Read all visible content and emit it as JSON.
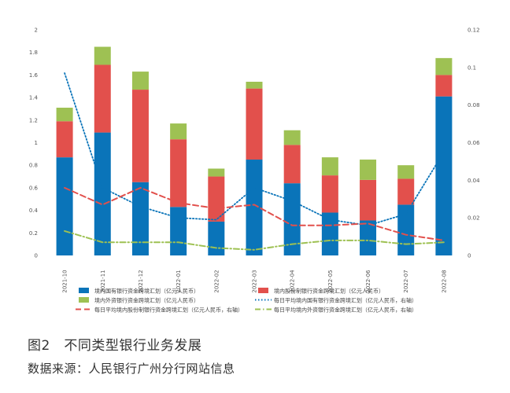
{
  "figure": {
    "caption": "图2　不同类型银行业务发展",
    "source": "数据来源：人民银行广州分行网站信息"
  },
  "chart_data": {
    "type": "bar",
    "stacked": true,
    "categories": [
      "2021-10",
      "2021-11",
      "2021-12",
      "2022-01",
      "2022-02",
      "2022-03",
      "2022-04",
      "2022-05",
      "2022-06",
      "2022-07",
      "2022-08"
    ],
    "ylim": [
      0,
      2
    ],
    "yticks": [
      "0",
      "0.2",
      "0.4",
      "0.6",
      "0.8",
      "1",
      "1.2",
      "1.4",
      "1.6",
      "1.8",
      "2"
    ],
    "y2lim": [
      0,
      0.12
    ],
    "y2ticks": [
      "0",
      "0.02",
      "0.04",
      "0.06",
      "0.08",
      "0.1",
      "0.12"
    ],
    "grid": false,
    "legend_position": "bottom",
    "series": [
      {
        "name": "境内国有银行资金跨境汇划（亿元人民币）",
        "kind": "bar",
        "axis": "left",
        "color": "#0a74b9",
        "values": [
          0.87,
          1.09,
          0.65,
          0.43,
          0.3,
          0.85,
          0.64,
          0.38,
          0.31,
          0.45,
          1.41
        ]
      },
      {
        "name": "境内股份制银行资金跨境汇划（亿元人民币）",
        "kind": "bar",
        "axis": "left",
        "color": "#e2504c",
        "values": [
          0.32,
          0.6,
          0.82,
          0.6,
          0.4,
          0.63,
          0.34,
          0.33,
          0.36,
          0.23,
          0.19
        ]
      },
      {
        "name": "境内外资银行资金跨境汇划（亿元人民币）",
        "kind": "bar",
        "axis": "left",
        "color": "#9ec153",
        "values": [
          0.12,
          0.16,
          0.16,
          0.14,
          0.07,
          0.06,
          0.13,
          0.16,
          0.18,
          0.12,
          0.15
        ]
      },
      {
        "name": "每日平均境内国有银行资金跨境汇划（亿元人民币，右轴）",
        "kind": "line",
        "axis": "right",
        "color": "#0a74b9",
        "dash": "dot",
        "values": [
          0.097,
          0.036,
          0.026,
          0.02,
          0.019,
          0.036,
          0.029,
          0.019,
          0.016,
          0.022,
          0.055
        ]
      },
      {
        "name": "每日平均境内股份制银行资金跨境汇划（亿元人民币，右轴）",
        "kind": "line",
        "axis": "right",
        "color": "#e2504c",
        "dash": "dash",
        "values": [
          0.036,
          0.027,
          0.036,
          0.028,
          0.025,
          0.027,
          0.016,
          0.016,
          0.017,
          0.011,
          0.008
        ]
      },
      {
        "name": "每日平均境内外资银行资金跨境汇划（亿元人民币，右轴）",
        "kind": "line",
        "axis": "right",
        "color": "#9ec153",
        "dash": "dashdot",
        "values": [
          0.013,
          0.007,
          0.007,
          0.007,
          0.004,
          0.003,
          0.006,
          0.008,
          0.008,
          0.006,
          0.007
        ]
      }
    ]
  }
}
